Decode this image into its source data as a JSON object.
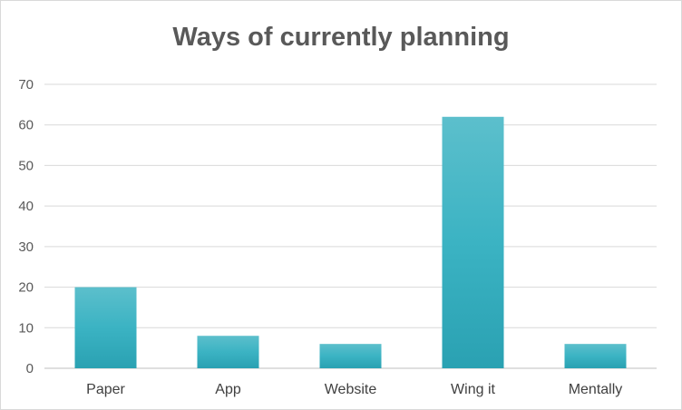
{
  "chart_data": {
    "type": "bar",
    "title": "Ways of currently planning",
    "categories": [
      "Paper",
      "App",
      "Website",
      "Wing it",
      "Mentally"
    ],
    "values": [
      20,
      8,
      6,
      62,
      6
    ],
    "ylim": [
      0,
      70
    ],
    "yticks": [
      0,
      10,
      20,
      30,
      40,
      50,
      60,
      70
    ],
    "grid": true,
    "bar_color": "#3bb3c3"
  }
}
